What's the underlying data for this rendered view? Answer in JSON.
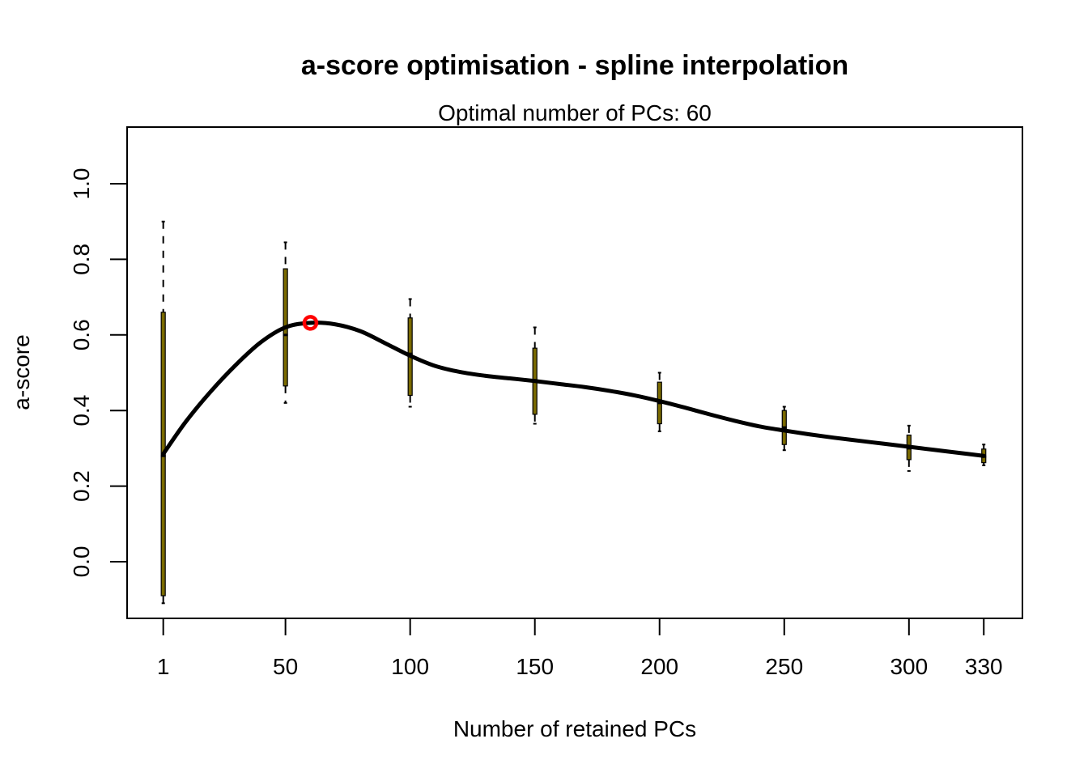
{
  "chart_data": {
    "type": "line",
    "title": "a-score optimisation - spline interpolation",
    "subtitle": "Optimal number of PCs: 60",
    "xlabel": "Number of retained PCs",
    "ylabel": "a-score",
    "xlim": [
      -13.5,
      345.5
    ],
    "ylim": [
      -0.15,
      1.15
    ],
    "x_ticks": [
      1,
      50,
      100,
      150,
      200,
      250,
      300,
      330
    ],
    "y_ticks": [
      0.0,
      0.2,
      0.4,
      0.6,
      0.8,
      1.0
    ],
    "grid": false,
    "boxplots": [
      {
        "x": 1,
        "whisker_low": -0.11,
        "q1": -0.09,
        "median": 0.28,
        "q3": 0.66,
        "whisker_high": 0.9
      },
      {
        "x": 50,
        "whisker_low": 0.42,
        "q1": 0.465,
        "median": 0.6,
        "q3": 0.775,
        "whisker_high": 0.845
      },
      {
        "x": 100,
        "whisker_low": 0.41,
        "q1": 0.44,
        "median": 0.55,
        "q3": 0.645,
        "whisker_high": 0.695
      },
      {
        "x": 150,
        "whisker_low": 0.365,
        "q1": 0.39,
        "median": 0.48,
        "q3": 0.565,
        "whisker_high": 0.62
      },
      {
        "x": 200,
        "whisker_low": 0.345,
        "q1": 0.365,
        "median": 0.42,
        "q3": 0.475,
        "whisker_high": 0.5
      },
      {
        "x": 250,
        "whisker_low": 0.295,
        "q1": 0.31,
        "median": 0.355,
        "q3": 0.4,
        "whisker_high": 0.41
      },
      {
        "x": 300,
        "whisker_low": 0.24,
        "q1": 0.27,
        "median": 0.3,
        "q3": 0.335,
        "whisker_high": 0.36
      },
      {
        "x": 330,
        "whisker_low": 0.255,
        "q1": 0.262,
        "median": 0.278,
        "q3": 0.298,
        "whisker_high": 0.31
      }
    ],
    "spline": {
      "x": [
        1,
        10,
        20,
        30,
        40,
        50,
        60,
        70,
        80,
        90,
        100,
        110,
        120,
        130,
        140,
        150,
        160,
        170,
        180,
        190,
        200,
        210,
        220,
        230,
        240,
        250,
        260,
        270,
        280,
        290,
        300,
        310,
        320,
        330
      ],
      "y": [
        0.285,
        0.37,
        0.45,
        0.52,
        0.58,
        0.62,
        0.632,
        0.628,
        0.61,
        0.578,
        0.545,
        0.518,
        0.502,
        0.492,
        0.485,
        0.478,
        0.47,
        0.462,
        0.452,
        0.44,
        0.425,
        0.408,
        0.39,
        0.373,
        0.358,
        0.347,
        0.337,
        0.328,
        0.32,
        0.312,
        0.304,
        0.296,
        0.288,
        0.28
      ]
    },
    "optimum": {
      "x": 60,
      "y": 0.632
    },
    "colors": {
      "spline": "#000000",
      "optimum_marker": "#ff0000",
      "box_fill": "#7a6a00"
    }
  }
}
